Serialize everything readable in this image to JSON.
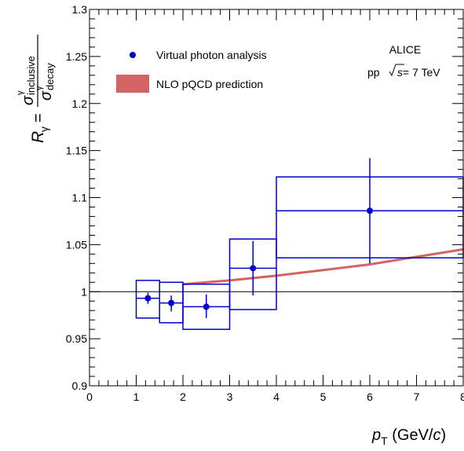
{
  "chart_data": {
    "type": "scatter",
    "xlim": [
      0,
      8
    ],
    "ylim": [
      0.9,
      1.3
    ],
    "x_ticks": [
      "0",
      "1",
      "2",
      "3",
      "4",
      "5",
      "6",
      "7",
      "8"
    ],
    "y_ticks": [
      "0.9",
      "0.95",
      "1",
      "1.05",
      "1.1",
      "1.15",
      "1.2",
      "1.25",
      "1.3"
    ],
    "xlabel": {
      "p": "p",
      "sub": "T",
      "unit": " (GeV/",
      "c": "c",
      "close": ")"
    },
    "ylabel": {
      "r": "R",
      "r_sub": "γ",
      "eq": "=",
      "num": "σ",
      "num_sup": "γ",
      "num_sub": "inclusive",
      "den": "σ",
      "den_sup": "γ",
      "den_sub": "decay"
    },
    "reference_line": 1.0,
    "grid": false,
    "legend_position": "top-left",
    "series": [
      {
        "name": "Virtual photon analysis",
        "kind": "points",
        "color": "#0000cc",
        "points": [
          {
            "x": 1.25,
            "y": 0.993,
            "x_low": 1.0,
            "x_high": 1.5,
            "stat_low": 0.987,
            "stat_high": 0.999,
            "sys_low": 0.972,
            "sys_high": 1.012
          },
          {
            "x": 1.75,
            "y": 0.988,
            "x_low": 1.5,
            "x_high": 2.0,
            "stat_low": 0.979,
            "stat_high": 0.996,
            "sys_low": 0.967,
            "sys_high": 1.01
          },
          {
            "x": 2.5,
            "y": 0.984,
            "x_low": 2.0,
            "x_high": 3.0,
            "stat_low": 0.972,
            "stat_high": 0.997,
            "sys_low": 0.96,
            "sys_high": 1.008
          },
          {
            "x": 3.5,
            "y": 1.025,
            "x_low": 3.0,
            "x_high": 4.0,
            "stat_low": 0.996,
            "stat_high": 1.054,
            "sys_low": 0.981,
            "sys_high": 1.056
          },
          {
            "x": 6.0,
            "y": 1.086,
            "x_low": 4.0,
            "x_high": 8.0,
            "stat_low": 1.03,
            "stat_high": 1.142,
            "sys_low": 1.036,
            "sys_high": 1.122
          }
        ]
      },
      {
        "name": "NLO pQCD prediction",
        "kind": "band",
        "color": "#d46464",
        "x": [
          2.0,
          3.0,
          4.0,
          5.0,
          6.0,
          7.0,
          8.0
        ],
        "y": [
          1.008,
          1.012,
          1.017,
          1.023,
          1.029,
          1.037,
          1.045
        ]
      }
    ],
    "annotations": {
      "experiment": "ALICE",
      "system_prefix": "pp",
      "sqrt_s": "s",
      "energy": " = 7 TeV"
    }
  }
}
